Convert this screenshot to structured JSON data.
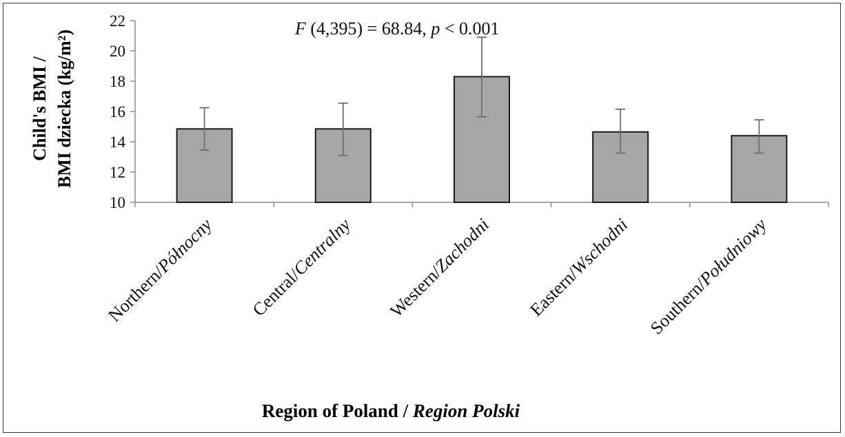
{
  "chart_data": {
    "type": "bar",
    "categories": [
      {
        "prefix": "Northern/",
        "italic": "Północny"
      },
      {
        "prefix": "Central/",
        "italic": "Centralny"
      },
      {
        "prefix": "Western/",
        "italic": "Zachodni"
      },
      {
        "prefix": "Eastern/",
        "italic": "Wschodni"
      },
      {
        "prefix": "Southern/",
        "italic": "Południowy"
      }
    ],
    "values": [
      14.85,
      14.85,
      18.3,
      14.65,
      14.4
    ],
    "error_high": [
      16.25,
      16.55,
      20.9,
      16.15,
      15.45
    ],
    "error_low": [
      13.45,
      13.1,
      15.65,
      13.25,
      13.25
    ],
    "ylim": [
      10,
      22
    ],
    "yticks": [
      10,
      12,
      14,
      16,
      18,
      20,
      22
    ],
    "ylabel_line1": "Child's BMI /",
    "ylabel_line2": "BMI dziecka (kg/m²)",
    "xlabel_main": "Region of Poland / ",
    "xlabel_italic": "Region Polski",
    "annotation": {
      "f_symbol": "F",
      "f_stat": " (4,395) = 68.84, ",
      "p_symbol": "p",
      "p_value": " < 0.001"
    },
    "bar_color": "#a6a6a6",
    "grid": false,
    "legend": "none"
  }
}
